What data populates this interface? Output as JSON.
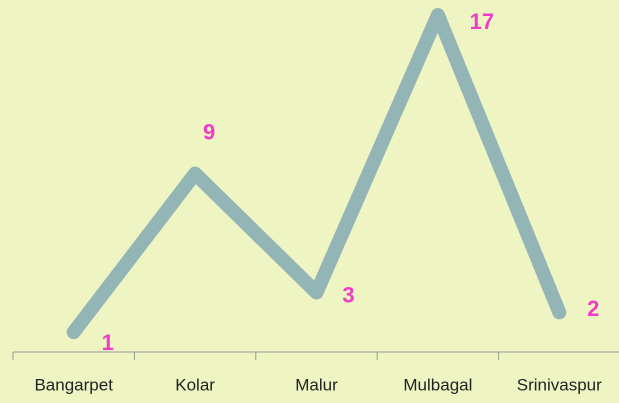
{
  "chart_data": {
    "type": "line",
    "categories": [
      "Bangarpet",
      "Kolar",
      "Malur",
      "Mulbagal",
      "Srinivaspur"
    ],
    "values": [
      1,
      9,
      3,
      17,
      2
    ],
    "color": "#93b5b5",
    "label_color": "#f23bc8",
    "ylim": [
      0,
      17
    ]
  }
}
